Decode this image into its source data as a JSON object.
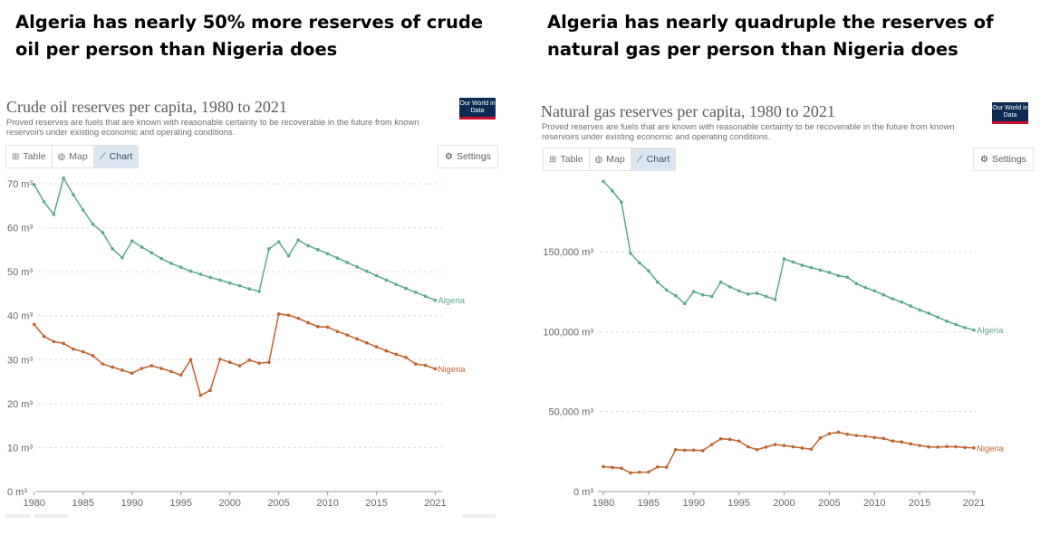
{
  "headlines": {
    "left": "Algeria has nearly 50% more reserves of crude oil per person than Nigeria does",
    "right": "Algeria has nearly quadruple the reserves of natural gas per person than Nigeria does"
  },
  "colors": {
    "algeria": "#5aa98a",
    "nigeria": "#c0612b",
    "grid": "#dddddd"
  },
  "ui": {
    "tabs": [
      "Table",
      "Map",
      "Chart"
    ],
    "tab_icons": [
      "table-icon",
      "globe-icon",
      "line-chart-icon"
    ],
    "active_tab": "Chart",
    "settings_label": "Settings",
    "settings_icon": "gear-icon",
    "logo_text": "Our World in Data"
  },
  "chart_data": [
    {
      "type": "line",
      "title": "Crude oil reserves per capita, 1980 to 2021",
      "subtitle": "Proved reserves are fuels that are known with reasonable certainty to be recoverable in the future from known reservoirs under existing economic and operating conditions.",
      "xlim": [
        1980,
        2021
      ],
      "ylim": [
        0,
        70
      ],
      "x_ticks": [
        "1980",
        "1985",
        "1990",
        "1995",
        "2000",
        "2005",
        "2010",
        "2015",
        "2021"
      ],
      "y_ticks": [
        "0 m³",
        "10 m³",
        "20 m³",
        "30 m³",
        "40 m³",
        "50 m³",
        "60 m³",
        "70 m³"
      ],
      "grid": true,
      "x": [
        1980,
        1981,
        1982,
        1983,
        1984,
        1985,
        1986,
        1987,
        1988,
        1989,
        1990,
        1991,
        1992,
        1993,
        1994,
        1995,
        1996,
        1997,
        1998,
        1999,
        2000,
        2001,
        2002,
        2003,
        2004,
        2005,
        2006,
        2007,
        2008,
        2009,
        2010,
        2011,
        2012,
        2013,
        2014,
        2015,
        2016,
        2017,
        2018,
        2019,
        2020,
        2021
      ],
      "series": [
        {
          "name": "Algeria",
          "values": [
            69.8,
            65.9,
            63.0,
            71.3,
            67.5,
            64.0,
            60.8,
            58.9,
            55.2,
            53.2,
            57.0,
            55.6,
            54.3,
            53.0,
            51.9,
            51.0,
            50.1,
            49.4,
            48.7,
            48.1,
            47.4,
            46.8,
            46.1,
            45.5,
            55.2,
            56.8,
            53.6,
            57.2,
            55.9,
            55.0,
            54.1,
            53.1,
            52.1,
            51.1,
            50.1,
            49.1,
            48.1,
            47.1,
            46.2,
            45.3,
            44.4,
            43.5
          ]
        },
        {
          "name": "Nigeria",
          "values": [
            38.0,
            35.3,
            34.1,
            33.7,
            32.4,
            31.8,
            30.9,
            29.0,
            28.3,
            27.6,
            26.9,
            28.0,
            28.6,
            28.0,
            27.3,
            26.5,
            30.0,
            21.9,
            23.0,
            30.1,
            29.4,
            28.6,
            29.9,
            29.2,
            29.4,
            40.4,
            40.1,
            39.4,
            38.4,
            37.5,
            37.4,
            36.4,
            35.6,
            34.7,
            33.8,
            32.9,
            32.0,
            31.2,
            30.5,
            29.0,
            28.7,
            27.9
          ]
        }
      ]
    },
    {
      "type": "line",
      "title": "Natural gas reserves per capita, 1980 to 2021",
      "subtitle": "Proved reserves are fuels that are known with reasonable certainty to be recoverable in the future from known reservoirs under existing economic and operating conditions.",
      "xlim": [
        1980,
        2021
      ],
      "ylim": [
        0,
        200000
      ],
      "x_ticks": [
        "1980",
        "1985",
        "1990",
        "1995",
        "2000",
        "2005",
        "2010",
        "2015",
        "2021"
      ],
      "y_ticks": [
        "0 m³",
        "50,000 m³",
        "100,000 m³",
        "150,000 m³"
      ],
      "grid": true,
      "x": [
        1980,
        1981,
        1982,
        1983,
        1984,
        1985,
        1986,
        1987,
        1988,
        1989,
        1990,
        1991,
        1992,
        1993,
        1994,
        1995,
        1996,
        1997,
        1998,
        1999,
        2000,
        2001,
        2002,
        2003,
        2004,
        2005,
        2006,
        2007,
        2008,
        2009,
        2010,
        2011,
        2012,
        2013,
        2014,
        2015,
        2016,
        2017,
        2018,
        2019,
        2020,
        2021
      ],
      "series": [
        {
          "name": "Algeria",
          "values": [
            194000,
            188000,
            181000,
            149000,
            143000,
            138000,
            131000,
            126000,
            122500,
            117500,
            125000,
            123000,
            122000,
            131000,
            128000,
            125500,
            123500,
            124000,
            122000,
            120000,
            145500,
            143500,
            141500,
            140000,
            138500,
            137000,
            135000,
            134000,
            130000,
            127500,
            125500,
            123000,
            120500,
            118500,
            116000,
            113500,
            111500,
            109000,
            106500,
            104500,
            102500,
            101000
          ]
        },
        {
          "name": "Nigeria",
          "values": [
            15600,
            15100,
            14600,
            11700,
            12100,
            12200,
            15400,
            15200,
            26200,
            25800,
            25900,
            25600,
            29400,
            33000,
            32600,
            31600,
            28000,
            26200,
            27800,
            29400,
            28800,
            28000,
            27200,
            26500,
            33500,
            36200,
            37100,
            35800,
            35000,
            34600,
            33800,
            33200,
            31600,
            31000,
            29800,
            28800,
            27900,
            27800,
            28100,
            28000,
            27500,
            27300
          ]
        }
      ]
    }
  ]
}
